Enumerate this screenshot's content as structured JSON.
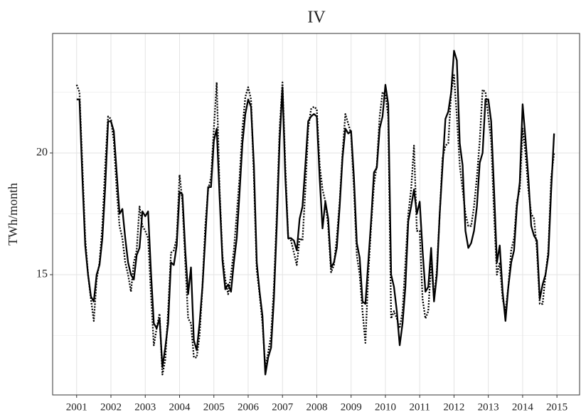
{
  "chart_data": {
    "type": "line",
    "title": "IV",
    "y_label": "TWh/month",
    "x": [
      2001,
      2001.083,
      2001.167,
      2001.25,
      2001.333,
      2001.417,
      2001.5,
      2001.583,
      2001.667,
      2001.75,
      2001.833,
      2001.917,
      2002,
      2002.083,
      2002.167,
      2002.25,
      2002.333,
      2002.417,
      2002.5,
      2002.583,
      2002.667,
      2002.75,
      2002.833,
      2002.917,
      2003,
      2003.083,
      2003.167,
      2003.25,
      2003.333,
      2003.417,
      2003.5,
      2003.583,
      2003.667,
      2003.75,
      2003.833,
      2003.917,
      2004,
      2004.083,
      2004.167,
      2004.25,
      2004.333,
      2004.417,
      2004.5,
      2004.583,
      2004.667,
      2004.75,
      2004.833,
      2004.917,
      2005,
      2005.083,
      2005.167,
      2005.25,
      2005.333,
      2005.417,
      2005.5,
      2005.583,
      2005.667,
      2005.75,
      2005.833,
      2005.917,
      2006,
      2006.083,
      2006.167,
      2006.25,
      2006.333,
      2006.417,
      2006.5,
      2006.583,
      2006.667,
      2006.75,
      2006.833,
      2006.917,
      2007,
      2007.083,
      2007.167,
      2007.25,
      2007.333,
      2007.417,
      2007.5,
      2007.583,
      2007.667,
      2007.75,
      2007.833,
      2007.917,
      2008,
      2008.083,
      2008.167,
      2008.25,
      2008.333,
      2008.417,
      2008.5,
      2008.583,
      2008.667,
      2008.75,
      2008.833,
      2008.917,
      2009,
      2009.083,
      2009.167,
      2009.25,
      2009.333,
      2009.417,
      2009.5,
      2009.583,
      2009.667,
      2009.75,
      2009.833,
      2009.917,
      2010,
      2010.083,
      2010.167,
      2010.25,
      2010.333,
      2010.417,
      2010.5,
      2010.583,
      2010.667,
      2010.75,
      2010.833,
      2010.917,
      2011,
      2011.083,
      2011.167,
      2011.25,
      2011.333,
      2011.417,
      2011.5,
      2011.583,
      2011.667,
      2011.75,
      2011.833,
      2011.917,
      2012,
      2012.083,
      2012.167,
      2012.25,
      2012.333,
      2012.417,
      2012.5,
      2012.583,
      2012.667,
      2012.75,
      2012.833,
      2012.917,
      2013,
      2013.083,
      2013.167,
      2013.25,
      2013.333,
      2013.417,
      2013.5,
      2013.583,
      2013.667,
      2013.75,
      2013.833,
      2013.917,
      2014,
      2014.083,
      2014.167,
      2014.25,
      2014.333,
      2014.417,
      2014.5,
      2014.583,
      2014.667,
      2014.75,
      2014.833,
      2014.917
    ],
    "series": [
      {
        "color": "#000000",
        "style": "solid",
        "values": [
          22.2,
          22.2,
          19.0,
          16.2,
          15.0,
          14.1,
          13.9,
          15.0,
          15.4,
          16.5,
          18.6,
          21.3,
          21.3,
          20.9,
          19.2,
          17.5,
          17.7,
          16.5,
          15.5,
          15.0,
          14.8,
          15.8,
          16.1,
          17.6,
          17.4,
          17.6,
          15.1,
          13.0,
          12.8,
          13.2,
          11.2,
          12.0,
          13.0,
          15.5,
          15.4,
          16.2,
          18.4,
          18.3,
          16.0,
          14.2,
          15.3,
          12.3,
          11.9,
          13.0,
          14.5,
          16.5,
          18.6,
          18.6,
          20.5,
          21.0,
          18.2,
          15.6,
          14.4,
          14.6,
          14.3,
          15.5,
          16.5,
          18.4,
          20.4,
          21.6,
          22.2,
          21.9,
          19.5,
          15.5,
          14.3,
          13.3,
          10.9,
          11.6,
          12.0,
          14.0,
          17.0,
          20.5,
          22.7,
          19.0,
          16.5,
          16.5,
          16.4,
          16.0,
          17.3,
          17.8,
          19.5,
          21.3,
          21.5,
          21.6,
          21.5,
          19.0,
          16.9,
          18.0,
          17.3,
          15.3,
          15.5,
          16.1,
          17.8,
          19.8,
          21.0,
          20.8,
          20.9,
          19.0,
          16.3,
          15.7,
          13.9,
          13.8,
          15.5,
          17.2,
          19.2,
          19.4,
          21.0,
          21.5,
          22.8,
          22.0,
          15.0,
          14.5,
          13.5,
          12.1,
          13.0,
          14.5,
          17.2,
          17.8,
          18.5,
          17.5,
          18.0,
          16.0,
          14.3,
          14.5,
          16.1,
          13.9,
          15.0,
          17.5,
          19.5,
          21.4,
          21.7,
          22.5,
          24.2,
          23.8,
          20.4,
          19.5,
          16.8,
          16.1,
          16.3,
          16.8,
          17.8,
          19.6,
          20.0,
          22.2,
          22.2,
          21.3,
          18.5,
          15.5,
          16.2,
          14.3,
          13.1,
          14.5,
          15.5,
          16.0,
          17.8,
          18.8,
          22.0,
          20.6,
          19.0,
          17.0,
          16.6,
          16.4,
          14.0,
          14.6,
          15.0,
          15.8,
          18.5,
          20.8
        ]
      },
      {
        "color": "#000000",
        "style": "dotted",
        "values": [
          22.8,
          22.5,
          19.5,
          16.5,
          15.0,
          14.0,
          13.1,
          14.8,
          15.5,
          17.0,
          19.5,
          21.5,
          21.4,
          20.5,
          18.5,
          17.0,
          16.5,
          15.5,
          15.0,
          14.3,
          15.5,
          16.0,
          17.8,
          17.0,
          16.8,
          16.5,
          14.2,
          12.1,
          12.8,
          13.4,
          10.9,
          11.5,
          13.5,
          15.9,
          16.0,
          16.5,
          19.1,
          18.0,
          15.5,
          13.2,
          13.0,
          11.6,
          11.6,
          12.5,
          14.5,
          17.0,
          18.5,
          19.0,
          21.0,
          22.9,
          18.5,
          15.8,
          14.8,
          14.2,
          15.0,
          16.0,
          17.5,
          19.0,
          21.0,
          22.3,
          22.7,
          22.2,
          19.0,
          15.2,
          14.2,
          13.0,
          11.2,
          11.8,
          12.5,
          14.5,
          17.5,
          21.0,
          22.9,
          19.5,
          16.5,
          16.4,
          15.9,
          15.4,
          16.5,
          16.4,
          18.5,
          21.0,
          21.8,
          21.9,
          21.8,
          19.5,
          18.5,
          18.0,
          17.0,
          15.1,
          15.4,
          16.5,
          18.0,
          20.0,
          21.6,
          21.2,
          20.8,
          18.5,
          15.8,
          15.0,
          13.5,
          12.2,
          15.0,
          17.0,
          18.7,
          19.5,
          21.5,
          22.5,
          22.4,
          21.5,
          13.2,
          13.5,
          13.2,
          12.8,
          13.5,
          15.5,
          17.5,
          18.5,
          20.3,
          16.8,
          16.8,
          14.0,
          13.2,
          13.5,
          15.5,
          14.0,
          15.2,
          17.5,
          19.8,
          20.3,
          20.4,
          22.5,
          23.2,
          21.5,
          19.5,
          18.5,
          17.5,
          17.0,
          17.0,
          17.8,
          19.0,
          20.5,
          22.6,
          22.5,
          21.5,
          20.5,
          17.5,
          15.0,
          15.5,
          14.0,
          13.5,
          14.5,
          16.0,
          16.5,
          18.0,
          18.5,
          21.0,
          20.0,
          18.5,
          17.5,
          17.3,
          16.0,
          13.8,
          13.8,
          15.0,
          16.0,
          19.0,
          20.0
        ]
      }
    ],
    "xlim": [
      2000.3,
      2015.66
    ],
    "xticks": [
      2001,
      2002,
      2003,
      2004,
      2005,
      2006,
      2007,
      2008,
      2009,
      2010,
      2011,
      2012,
      2013,
      2014,
      2015
    ],
    "ylim": [
      10.06,
      24.91
    ],
    "yticks": [
      15,
      20
    ],
    "minor_yticks": [
      12.5,
      17.5,
      22.5
    ],
    "grid": true
  }
}
